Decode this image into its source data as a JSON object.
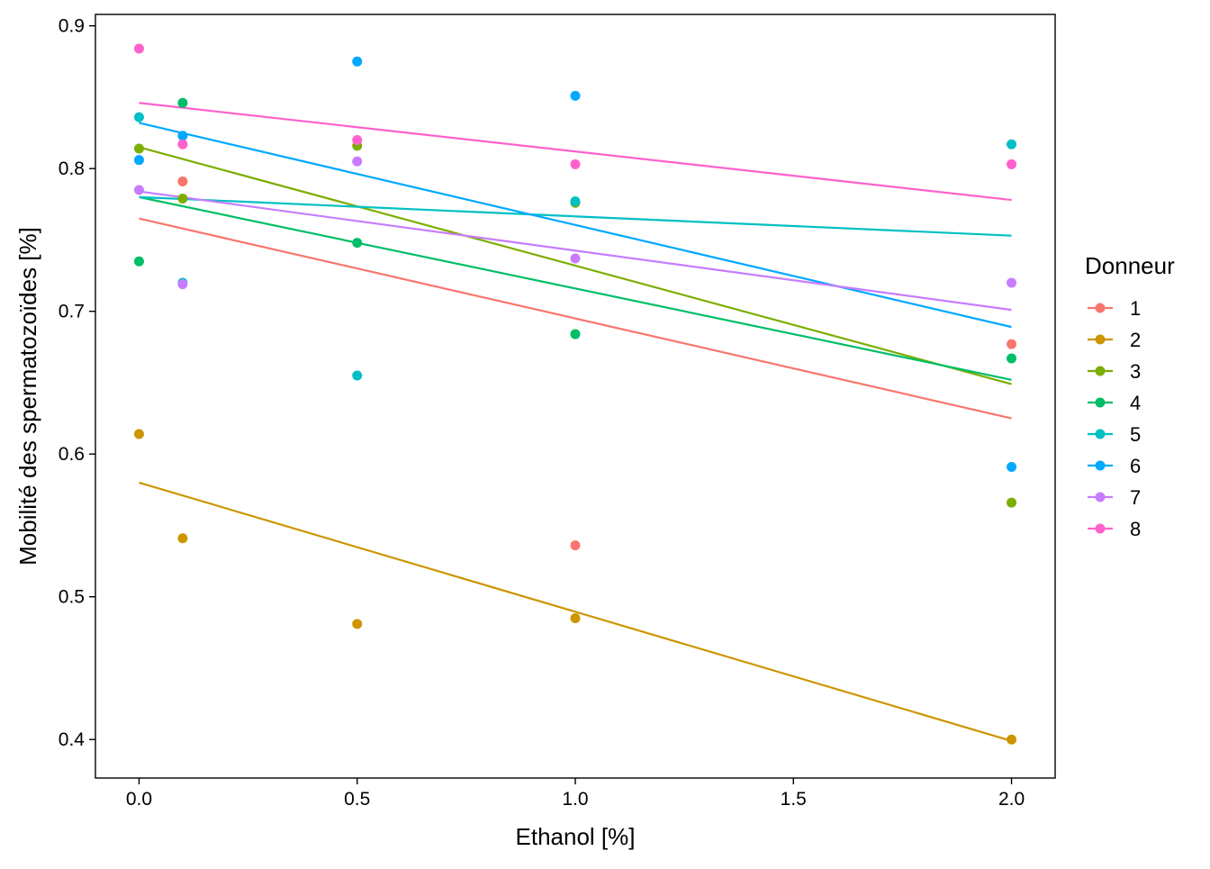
{
  "chart_data": {
    "type": "scatter",
    "title": "",
    "xlabel": "Ethanol [%]",
    "ylabel": "Mobilité des spermatozoïdes [%]",
    "xlim": [
      -0.1,
      2.1
    ],
    "ylim": [
      0.373,
      0.908
    ],
    "x_ticks": [
      0.0,
      0.5,
      1.0,
      1.5,
      2.0
    ],
    "x_tick_labels": [
      "0.0",
      "0.5",
      "1.0",
      "1.5",
      "2.0"
    ],
    "y_ticks": [
      0.4,
      0.5,
      0.6,
      0.7,
      0.8,
      0.9
    ],
    "y_tick_labels": [
      "0.4",
      "0.5",
      "0.6",
      "0.7",
      "0.8",
      "0.9"
    ],
    "grid": false,
    "legend": {
      "title": "Donneur",
      "placement": "right"
    },
    "series": [
      {
        "name": "1",
        "color": "#F8766D",
        "points": [
          [
            0.1,
            0.791
          ],
          [
            1.0,
            0.536
          ],
          [
            2.0,
            0.677
          ]
        ],
        "fit": [
          [
            0.0,
            0.765
          ],
          [
            2.0,
            0.625
          ]
        ]
      },
      {
        "name": "2",
        "color": "#CD9600",
        "points": [
          [
            0.0,
            0.614
          ],
          [
            0.1,
            0.541
          ],
          [
            0.5,
            0.481
          ],
          [
            1.0,
            0.485
          ],
          [
            2.0,
            0.4
          ]
        ],
        "fit": [
          [
            0.0,
            0.58
          ],
          [
            2.0,
            0.399
          ]
        ]
      },
      {
        "name": "3",
        "color": "#7CAE00",
        "points": [
          [
            0.0,
            0.814
          ],
          [
            0.1,
            0.779
          ],
          [
            0.5,
            0.816
          ],
          [
            1.0,
            0.776
          ],
          [
            2.0,
            0.566
          ]
        ],
        "fit": [
          [
            0.0,
            0.815
          ],
          [
            2.0,
            0.649
          ]
        ]
      },
      {
        "name": "4",
        "color": "#00BE67",
        "points": [
          [
            0.0,
            0.735
          ],
          [
            0.1,
            0.846
          ],
          [
            0.5,
            0.748
          ],
          [
            1.0,
            0.684
          ],
          [
            2.0,
            0.667
          ]
        ],
        "fit": [
          [
            0.0,
            0.78
          ],
          [
            2.0,
            0.652
          ]
        ]
      },
      {
        "name": "5",
        "color": "#00BFC4",
        "points": [
          [
            0.0,
            0.836
          ],
          [
            0.1,
            0.72
          ],
          [
            0.5,
            0.655
          ],
          [
            1.0,
            0.777
          ],
          [
            2.0,
            0.817
          ]
        ],
        "fit": [
          [
            0.0,
            0.78
          ],
          [
            2.0,
            0.753
          ]
        ]
      },
      {
        "name": "6",
        "color": "#00A9FF",
        "points": [
          [
            0.0,
            0.806
          ],
          [
            0.1,
            0.823
          ],
          [
            0.5,
            0.875
          ],
          [
            1.0,
            0.851
          ],
          [
            2.0,
            0.591
          ]
        ],
        "fit": [
          [
            0.0,
            0.832
          ],
          [
            2.0,
            0.689
          ]
        ]
      },
      {
        "name": "7",
        "color": "#C77CFF",
        "points": [
          [
            0.0,
            0.785
          ],
          [
            0.1,
            0.719
          ],
          [
            0.5,
            0.805
          ],
          [
            1.0,
            0.737
          ],
          [
            2.0,
            0.72
          ]
        ],
        "fit": [
          [
            0.0,
            0.784
          ],
          [
            2.0,
            0.701
          ]
        ]
      },
      {
        "name": "8",
        "color": "#FF61CC",
        "points": [
          [
            0.0,
            0.884
          ],
          [
            0.1,
            0.817
          ],
          [
            0.5,
            0.82
          ],
          [
            1.0,
            0.803
          ],
          [
            2.0,
            0.803
          ]
        ],
        "fit": [
          [
            0.0,
            0.846
          ],
          [
            2.0,
            0.778
          ]
        ]
      }
    ]
  }
}
